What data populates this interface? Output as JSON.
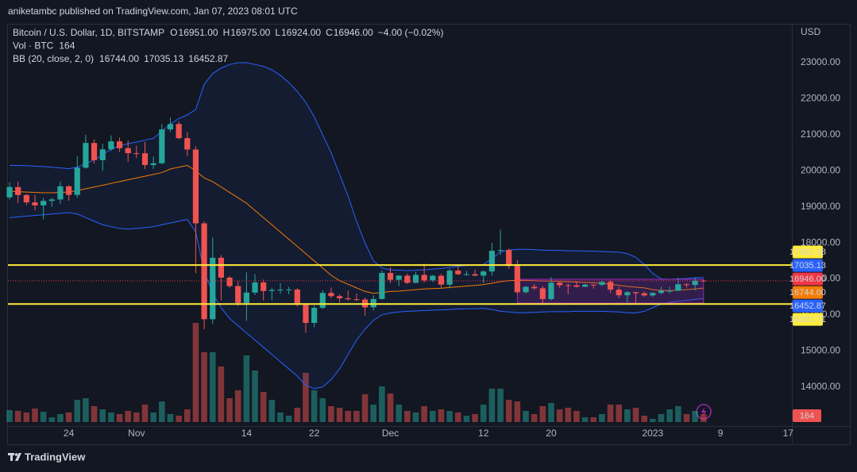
{
  "header": {
    "publisher": "aniketambc published on TradingView.com, Jan 07, 2023 08:01 UTC"
  },
  "footer": {
    "brand": "TradingView"
  },
  "chart_data": {
    "type": "candlestick",
    "legend": [
      {
        "title": "Bitcoin / U.S. Dollar, 1D, BITSTAMP",
        "items": [
          {
            "key": "O",
            "value": "16951.00",
            "color": "#f23645"
          },
          {
            "key": "H",
            "value": "16975.00",
            "color": "#f23645"
          },
          {
            "key": "L",
            "value": "16924.00",
            "color": "#f23645"
          },
          {
            "key": "C",
            "value": "16946.00",
            "color": "#f23645"
          },
          {
            "value": "−4.00 (−0.02%)",
            "color": "#f23645"
          }
        ]
      },
      {
        "title": "Vol · BTC",
        "items": [
          {
            "value": "164",
            "color": "#f23645"
          }
        ]
      },
      {
        "title": "BB (20, close, 2, 0)",
        "items": [
          {
            "value": "16744.00",
            "color": "#ff6d00"
          },
          {
            "value": "17035.13",
            "color": "#2962ff"
          },
          {
            "value": "16452.87",
            "color": "#2962ff"
          }
        ]
      }
    ],
    "y_axis_label": "USD",
    "up_color": "#26a69a",
    "down_color": "#ef5350",
    "open": [
      19262,
      19549,
      19327,
      19123,
      19041,
      19164,
      19204,
      19570,
      19330,
      20085,
      20772,
      20295,
      20595,
      20818,
      20627,
      20490,
      20485,
      20159,
      20209,
      21148,
      21299,
      20905,
      20590,
      18541,
      15880,
      17586,
      17034,
      16799,
      16330,
      16619,
      16900,
      16662,
      16692,
      16700,
      16705,
      16280,
      15778,
      16195,
      16610,
      16520,
      16460,
      16435,
      16428,
      16210,
      16441,
      17164,
      16975,
      17090,
      16890,
      17110,
      16960,
      17085,
      16840,
      17230,
      17130,
      17130,
      17090,
      17205,
      17780,
      17800,
      17360,
      16630,
      16780,
      16740,
      16440,
      16895,
      16825,
      16820,
      16780,
      16840,
      16835,
      16915,
      16700,
      16545,
      16630,
      16600,
      16540,
      16610,
      16670,
      16670,
      16850,
      16830,
      16951
    ],
    "high": [
      19680,
      19700,
      19350,
      19330,
      19250,
      19250,
      19700,
      19600,
      20400,
      21000,
      20870,
      20750,
      20980,
      20920,
      20840,
      20700,
      20800,
      20390,
      21300,
      21480,
      21370,
      21070,
      20680,
      18600,
      18150,
      17660,
      17080,
      16930,
      17180,
      17130,
      16980,
      16750,
      16880,
      16780,
      16740,
      16300,
      16260,
      16680,
      16760,
      16570,
      16680,
      16590,
      16480,
      16540,
      17230,
      17330,
      17100,
      17150,
      17200,
      17420,
      17110,
      17140,
      17290,
      17340,
      17220,
      17250,
      17240,
      18000,
      18370,
      17840,
      17520,
      16800,
      16860,
      16800,
      17050,
      16910,
      16870,
      16940,
      16860,
      16850,
      16960,
      16960,
      16780,
      16660,
      16640,
      16650,
      16630,
      16780,
      16780,
      17030,
      16880,
      17030,
      16975
    ],
    "low": [
      19200,
      19100,
      19050,
      18900,
      18650,
      19000,
      19080,
      19170,
      19250,
      20060,
      20200,
      20000,
      20550,
      20520,
      20250,
      20350,
      20050,
      20050,
      20180,
      21080,
      20880,
      20400,
      17160,
      15600,
      15750,
      16400,
      16750,
      16250,
      15840,
      16550,
      16400,
      16400,
      16590,
      16570,
      16230,
      15500,
      15660,
      16160,
      16460,
      16350,
      16400,
      16390,
      15980,
      16120,
      16430,
      16880,
      16800,
      16860,
      16880,
      16900,
      16910,
      16750,
      16740,
      17100,
      17090,
      17080,
      16880,
      17090,
      17670,
      17280,
      16570,
      16590,
      16700,
      16280,
      16400,
      16750,
      16570,
      16760,
      16770,
      16730,
      16790,
      16600,
      16470,
      16350,
      16330,
      16500,
      16500,
      16570,
      16600,
      16660,
      16760,
      16680,
      16924
    ],
    "close": [
      19549,
      19327,
      19123,
      19041,
      19164,
      19204,
      19570,
      19330,
      20085,
      20772,
      20295,
      20595,
      20818,
      20627,
      20490,
      20485,
      20159,
      20209,
      21148,
      21299,
      20905,
      20590,
      18541,
      15880,
      17586,
      17034,
      16799,
      16330,
      16619,
      16900,
      16662,
      16692,
      16700,
      16705,
      16280,
      15778,
      16195,
      16610,
      16520,
      16460,
      16435,
      16428,
      16210,
      16441,
      17164,
      16975,
      17090,
      16890,
      17110,
      16960,
      17085,
      16840,
      17230,
      17130,
      17130,
      17090,
      17205,
      17780,
      17800,
      17360,
      16630,
      16780,
      16740,
      16440,
      16895,
      16825,
      16820,
      16780,
      16840,
      16835,
      16915,
      16700,
      16545,
      16630,
      16600,
      16540,
      16610,
      16670,
      16670,
      16850,
      16830,
      16950,
      16946
    ],
    "volume": [
      246,
      230,
      197,
      279,
      213,
      98,
      164,
      197,
      459,
      492,
      328,
      262,
      197,
      164,
      230,
      197,
      361,
      197,
      426,
      164,
      131,
      262,
      2050,
      1443,
      1443,
      1148,
      492,
      656,
      1378,
      1066,
      623,
      459,
      197,
      131,
      295,
      1017,
      656,
      492,
      328,
      295,
      230,
      230,
      574,
      361,
      738,
      590,
      361,
      230,
      197,
      328,
      230,
      262,
      230,
      197,
      131,
      164,
      361,
      689,
      689,
      459,
      426,
      230,
      164,
      328,
      394,
      262,
      295,
      230,
      98,
      98,
      164,
      361,
      361,
      262,
      295,
      131,
      66,
      164,
      262,
      328,
      164,
      230,
      164
    ],
    "volume_ylim": [
      0,
      4100
    ],
    "bollinger": {
      "upper": [
        20150,
        20150,
        20140,
        20130,
        20120,
        20100,
        20080,
        20060,
        20100,
        20200,
        20300,
        20450,
        20600,
        20700,
        20750,
        20800,
        20850,
        20900,
        21100,
        21300,
        21450,
        21550,
        21700,
        22400,
        22700,
        22850,
        22950,
        23000,
        23000,
        22950,
        22900,
        22800,
        22650,
        22450,
        22200,
        21900,
        21500,
        21000,
        20500,
        19900,
        19300,
        18600,
        18000,
        17500,
        17300,
        17250,
        17240,
        17230,
        17240,
        17250,
        17270,
        17290,
        17320,
        17350,
        17370,
        17380,
        17400,
        17560,
        17750,
        17800,
        17820,
        17820,
        17810,
        17800,
        17790,
        17790,
        17780,
        17780,
        17770,
        17770,
        17760,
        17750,
        17740,
        17700,
        17600,
        17400,
        17150,
        17000,
        16990,
        17000,
        17010,
        17030,
        17035.13
      ],
      "basis": [
        19430,
        19420,
        19410,
        19400,
        19390,
        19390,
        19400,
        19410,
        19450,
        19500,
        19550,
        19600,
        19650,
        19700,
        19750,
        19800,
        19850,
        19900,
        19950,
        20050,
        20100,
        20150,
        20000,
        19800,
        19700,
        19550,
        19400,
        19250,
        19100,
        18900,
        18700,
        18500,
        18300,
        18100,
        17900,
        17700,
        17500,
        17300,
        17100,
        16950,
        16850,
        16750,
        16650,
        16600,
        16620,
        16650,
        16660,
        16680,
        16700,
        16720,
        16730,
        16740,
        16760,
        16780,
        16800,
        16820,
        16840,
        16880,
        16920,
        16950,
        16960,
        16960,
        16950,
        16940,
        16940,
        16930,
        16920,
        16910,
        16900,
        16890,
        16880,
        16850,
        16820,
        16790,
        16770,
        16750,
        16700,
        16680,
        16670,
        16690,
        16700,
        16720,
        16744
      ],
      "lower": [
        18700,
        18720,
        18740,
        18760,
        18780,
        18800,
        18820,
        18840,
        18800,
        18700,
        18600,
        18500,
        18450,
        18400,
        18380,
        18400,
        18420,
        18450,
        18500,
        18550,
        18600,
        18650,
        18300,
        17200,
        16600,
        16200,
        15900,
        15700,
        15500,
        15300,
        15100,
        14900,
        14700,
        14500,
        14300,
        14050,
        13950,
        14000,
        14200,
        14500,
        14900,
        15300,
        15600,
        15850,
        16000,
        16050,
        16080,
        16100,
        16110,
        16120,
        16130,
        16140,
        16150,
        16160,
        16170,
        16170,
        16180,
        16150,
        16100,
        16080,
        16060,
        16060,
        16070,
        16080,
        16090,
        16090,
        16090,
        16100,
        16100,
        16100,
        16100,
        16090,
        16080,
        16060,
        16050,
        16100,
        16200,
        16300,
        16350,
        16380,
        16400,
        16430,
        16452.87
      ],
      "band_color": "#2962ff",
      "basis_color": "#f57c00"
    },
    "hlines": [
      {
        "value": 17382.18,
        "label": "17382.18",
        "color": "#ffeb3b"
      },
      {
        "value": 16302.71,
        "label": "16302.71",
        "color": "#ffeb3b"
      }
    ],
    "price_labels": [
      {
        "value": 17035.13,
        "label": "17035.13",
        "color": "#2962ff"
      },
      {
        "value": 16946,
        "label": "16946.00",
        "color": "#f23645",
        "line": "dotted"
      },
      {
        "value": 16744,
        "label": "16744.00",
        "color": "#f57c00"
      },
      {
        "value": 16452.87,
        "label": "16452.87",
        "color": "#2962ff"
      }
    ],
    "range_box": {
      "x": [
        60,
        82
      ],
      "y": [
        16330,
        16990
      ],
      "color": "#9c27b0"
    },
    "xlim": [
      -0.19,
      92.44
    ],
    "xticks": [
      {
        "value": 7,
        "label": "24"
      },
      {
        "value": 15,
        "label": "Nov"
      },
      {
        "value": 28,
        "label": "14"
      },
      {
        "value": 36,
        "label": "22"
      },
      {
        "value": 45,
        "label": "Dec"
      },
      {
        "value": 56,
        "label": "12"
      },
      {
        "value": 64,
        "label": "20"
      },
      {
        "value": 76,
        "label": "2023"
      },
      {
        "value": 84,
        "label": "9"
      },
      {
        "value": 92,
        "label": "17"
      }
    ],
    "ylim": [
      12960,
      24080
    ],
    "yticks": [
      {
        "value": 14000,
        "label": "14000.00"
      },
      {
        "value": 15000,
        "label": "15000.00"
      },
      {
        "value": 16000,
        "label": "16000.00"
      },
      {
        "value": 17000,
        "label": "17000.00"
      },
      {
        "value": 18000,
        "label": "18000.00"
      },
      {
        "value": 19000,
        "label": "19000.00"
      },
      {
        "value": 20000,
        "label": "20000.00"
      },
      {
        "value": 21000,
        "label": "21000.00"
      },
      {
        "value": 22000,
        "label": "22000.00"
      },
      {
        "value": 23000,
        "label": "23000.00"
      }
    ]
  }
}
